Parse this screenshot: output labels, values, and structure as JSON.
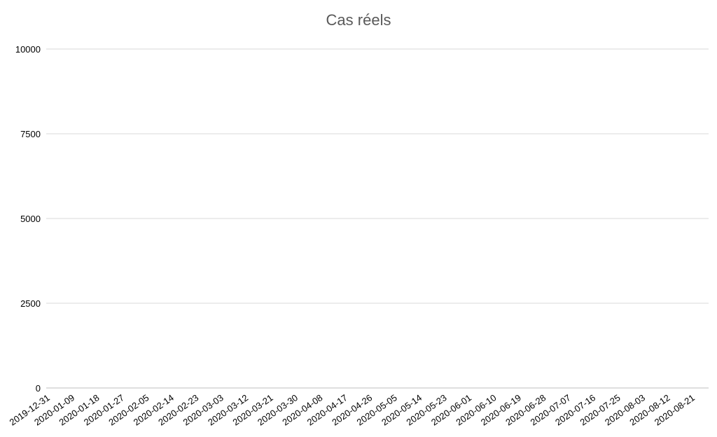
{
  "chart_data": {
    "type": "bar",
    "title": "Cas réels",
    "xlabel": "",
    "ylabel": "",
    "ylim": [
      0,
      10000
    ],
    "y_ticks": [
      "0",
      "2500",
      "5000",
      "7500",
      "10000"
    ],
    "x_ticks": [
      "2019-12-31",
      "2020-01-09",
      "2020-01-18",
      "2020-01-27",
      "2020-02-05",
      "2020-02-14",
      "2020-02-23",
      "2020-03-03",
      "2020-03-12",
      "2020-03-21",
      "2020-03-30",
      "2020-04-08",
      "2020-04-17",
      "2020-04-26",
      "2020-05-05",
      "2020-05-14",
      "2020-05-23",
      "2020-06-01",
      "2020-06-10",
      "2020-06-19",
      "2020-06-28",
      "2020-07-07",
      "2020-07-16",
      "2020-07-25",
      "2020-08-03",
      "2020-08-12",
      "2020-08-21"
    ],
    "grid": true,
    "legend": "none",
    "bar_color": "#4472c4",
    "line_color": "#ffb236",
    "series": [
      {
        "kind": "bar",
        "values": [
          0,
          0,
          0,
          0,
          0,
          0,
          0,
          0,
          0,
          0,
          0,
          0,
          0,
          0,
          0,
          0,
          0,
          0,
          0,
          0,
          0,
          0,
          0,
          0,
          0,
          0,
          0,
          0,
          0,
          0,
          0,
          0,
          0,
          0,
          0,
          0,
          0,
          0,
          0,
          0,
          0,
          0,
          0,
          0,
          0,
          0,
          0,
          0,
          0,
          0,
          0,
          0,
          0,
          0,
          0,
          0,
          0,
          0,
          0,
          0,
          0,
          0,
          0,
          0,
          0,
          0,
          0,
          0,
          0,
          0,
          0,
          0,
          0,
          0,
          0,
          0,
          0,
          0,
          0,
          0,
          0,
          0,
          0,
          0,
          0,
          0,
          0,
          0,
          0,
          0,
          0,
          0,
          0,
          0,
          0,
          0,
          0,
          0,
          0,
          0,
          0,
          0,
          0,
          0,
          0,
          0,
          0,
          0,
          0,
          0,
          0,
          0,
          0,
          0,
          0,
          0,
          0,
          0,
          0,
          0,
          0,
          0,
          0,
          0,
          0,
          0,
          0,
          0,
          0,
          0,
          0,
          0,
          0,
          0,
          0,
          0,
          0,
          0,
          0,
          0,
          0,
          0,
          0,
          0,
          0,
          0,
          0,
          0,
          0,
          0,
          0,
          0,
          0,
          0,
          0,
          0,
          0,
          0,
          0,
          0,
          0,
          0,
          0,
          0,
          0,
          0,
          0,
          0,
          0,
          0,
          0,
          0,
          0,
          0,
          0,
          0,
          0,
          0,
          0,
          0,
          0,
          0,
          0,
          0,
          0,
          0,
          0,
          0,
          0,
          0,
          0,
          0,
          0,
          0,
          0,
          0,
          0,
          0,
          0,
          0,
          0,
          0,
          0,
          0,
          0,
          0,
          0,
          0,
          0,
          0,
          0,
          0,
          0,
          0,
          0,
          0,
          0,
          0,
          0,
          0,
          0,
          0,
          0,
          0,
          0,
          0,
          0,
          0,
          0,
          0,
          0,
          0,
          0,
          0,
          0,
          0,
          0,
          0,
          0,
          0,
          0,
          0,
          0
        ]
      },
      {
        "kind": "line",
        "values": []
      }
    ]
  }
}
